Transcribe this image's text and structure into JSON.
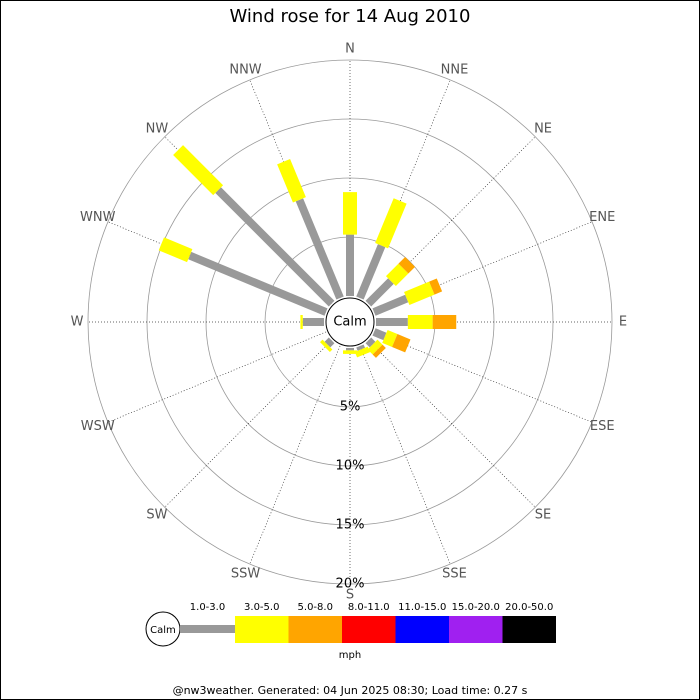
{
  "chart_data": {
    "type": "windrose",
    "title": "Wind rose for 14 Aug 2010",
    "categories": [
      "N",
      "NNE",
      "NE",
      "ENE",
      "E",
      "ESE",
      "SE",
      "SSE",
      "S",
      "SSW",
      "SW",
      "WSW",
      "W",
      "WNW",
      "NW",
      "NNW"
    ],
    "series": [
      {
        "name": "1.0-3.0",
        "color": "#999999",
        "values": [
          5.2,
          4.8,
          2.7,
          3.0,
          2.7,
          1.0,
          0.5,
          0.3,
          0.2,
          0,
          0.5,
          0,
          1.8,
          12.5,
          13.6,
          9.0
        ]
      },
      {
        "name": "3.0-5.0",
        "color": "#ffff00",
        "values": [
          3.6,
          4.1,
          1.5,
          2.3,
          2.1,
          0.9,
          0.6,
          0.5,
          0.3,
          0,
          0.3,
          0,
          0.2,
          2.6,
          4.8,
          3.5
        ]
      },
      {
        "name": "5.0-8.0",
        "color": "#ffa500",
        "values": [
          0,
          0,
          0.8,
          0.7,
          2.0,
          1.2,
          0.4,
          0,
          0,
          0,
          0,
          0,
          0,
          0,
          0,
          0
        ]
      },
      {
        "name": "8.0-11.0",
        "color": "#ff0000",
        "values": [
          0,
          0,
          0,
          0,
          0,
          0,
          0,
          0,
          0,
          0,
          0,
          0,
          0,
          0,
          0,
          0
        ]
      },
      {
        "name": "11.0-15.0",
        "color": "#0000ff",
        "values": [
          0,
          0,
          0,
          0,
          0,
          0,
          0,
          0,
          0,
          0,
          0,
          0,
          0,
          0,
          0,
          0
        ]
      },
      {
        "name": "15.0-20.0",
        "color": "#a020f0",
        "values": [
          0,
          0,
          0,
          0,
          0,
          0,
          0,
          0,
          0,
          0,
          0,
          0,
          0,
          0,
          0,
          0
        ]
      },
      {
        "name": "20.0-50.0",
        "color": "#000000",
        "values": [
          0,
          0,
          0,
          0,
          0,
          0,
          0,
          0,
          0,
          0,
          0,
          0,
          0,
          0,
          0,
          0
        ]
      }
    ],
    "rlim": [
      0,
      20
    ],
    "rticks": [
      {
        "value": 5,
        "label": "5%"
      },
      {
        "value": 10,
        "label": "10%"
      },
      {
        "value": 15,
        "label": "15%"
      },
      {
        "value": 20,
        "label": "20%"
      }
    ],
    "calm_label": "Calm",
    "unit_label": "mph",
    "footer": "@nw3weather. Generated: 04 Jun 2025 08:30; Load time: 0.27 s"
  }
}
